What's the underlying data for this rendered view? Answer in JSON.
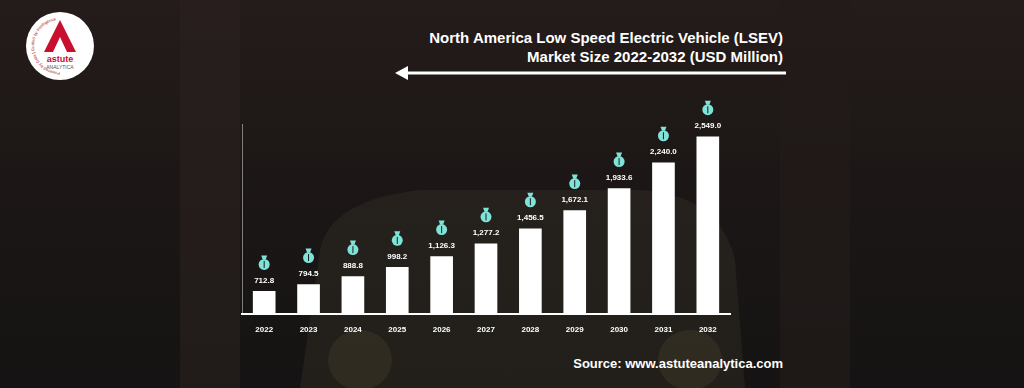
{
  "chart_data": {
    "type": "bar",
    "title": [
      "North America Low Speed Electric Vehicle (LSEV)",
      "Market Size 2022-2032 (USD Million)"
    ],
    "categories": [
      "2022",
      "2023",
      "2024",
      "2025",
      "2026",
      "2027",
      "2028",
      "2029",
      "2030",
      "2031",
      "2032"
    ],
    "values": [
      712.8,
      794.5,
      888.8,
      998.2,
      1126.3,
      1277.2,
      1456.5,
      1672.1,
      1933.6,
      2240.0,
      2549.0
    ],
    "value_labels": [
      "712.8",
      "794.5",
      "888.8",
      "998.2",
      "1,126.3",
      "1,277.2",
      "1,456.5",
      "1,672.1",
      "1,933.6",
      "2,240.0",
      "2,549.0"
    ],
    "color": "#ffffff",
    "ylim": [
      440,
      2700
    ],
    "grid": false,
    "data_labels": true,
    "tick_labels": "x",
    "annotations": [
      "Source: www.astuteanalytica.com"
    ]
  },
  "logo": {
    "name": "astute",
    "subname": "ANALYTICA",
    "tagline": "Powered by Data | Guided by Intelligence"
  }
}
